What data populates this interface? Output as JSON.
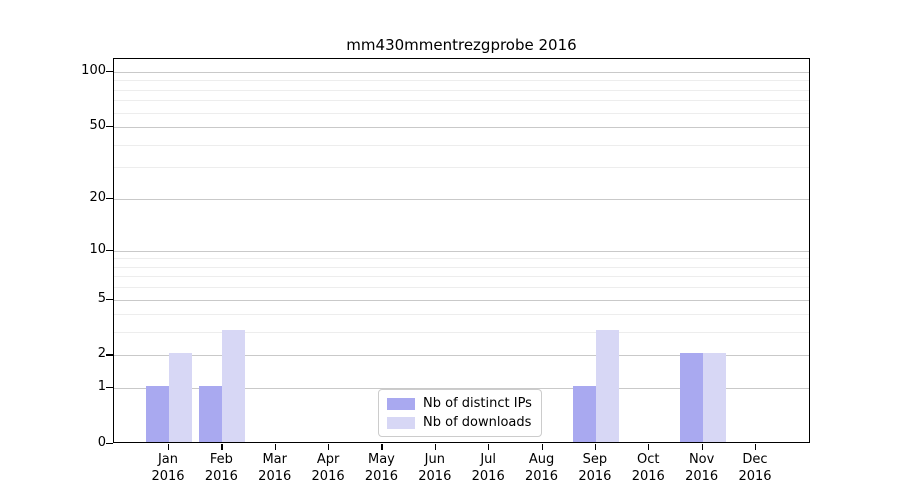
{
  "chart_data": {
    "type": "bar",
    "title": "mm430mmentrezgprobe 2016",
    "categories": [
      "Jan 2016",
      "Feb 2016",
      "Mar 2016",
      "Apr 2016",
      "May 2016",
      "Jun 2016",
      "Jul 2016",
      "Aug 2016",
      "Sep 2016",
      "Oct 2016",
      "Nov 2016",
      "Dec 2016"
    ],
    "series": [
      {
        "name": "Nb of distinct IPs",
        "color": "#a9a9f0",
        "values": [
          1,
          1,
          0,
          0,
          0,
          0,
          0,
          0,
          1,
          0,
          2,
          0
        ]
      },
      {
        "name": "Nb of downloads",
        "color": "#d7d7f5",
        "values": [
          2,
          3,
          0,
          0,
          0,
          0,
          0,
          0,
          3,
          0,
          2,
          0
        ]
      }
    ],
    "yscale": "log1p",
    "ylim": [
      0,
      100
    ],
    "yticks": [
      0,
      1,
      2,
      5,
      10,
      20,
      50,
      100
    ],
    "minor_gridlines": [
      3,
      4,
      6,
      7,
      8,
      9,
      30,
      40,
      60,
      70,
      80,
      90
    ],
    "grid": "on",
    "legend_position": "lower center",
    "colors": {
      "major_grid": "#c9c9c9",
      "minor_grid": "#ededed",
      "axis": "#000000",
      "background": "#ffffff"
    }
  }
}
